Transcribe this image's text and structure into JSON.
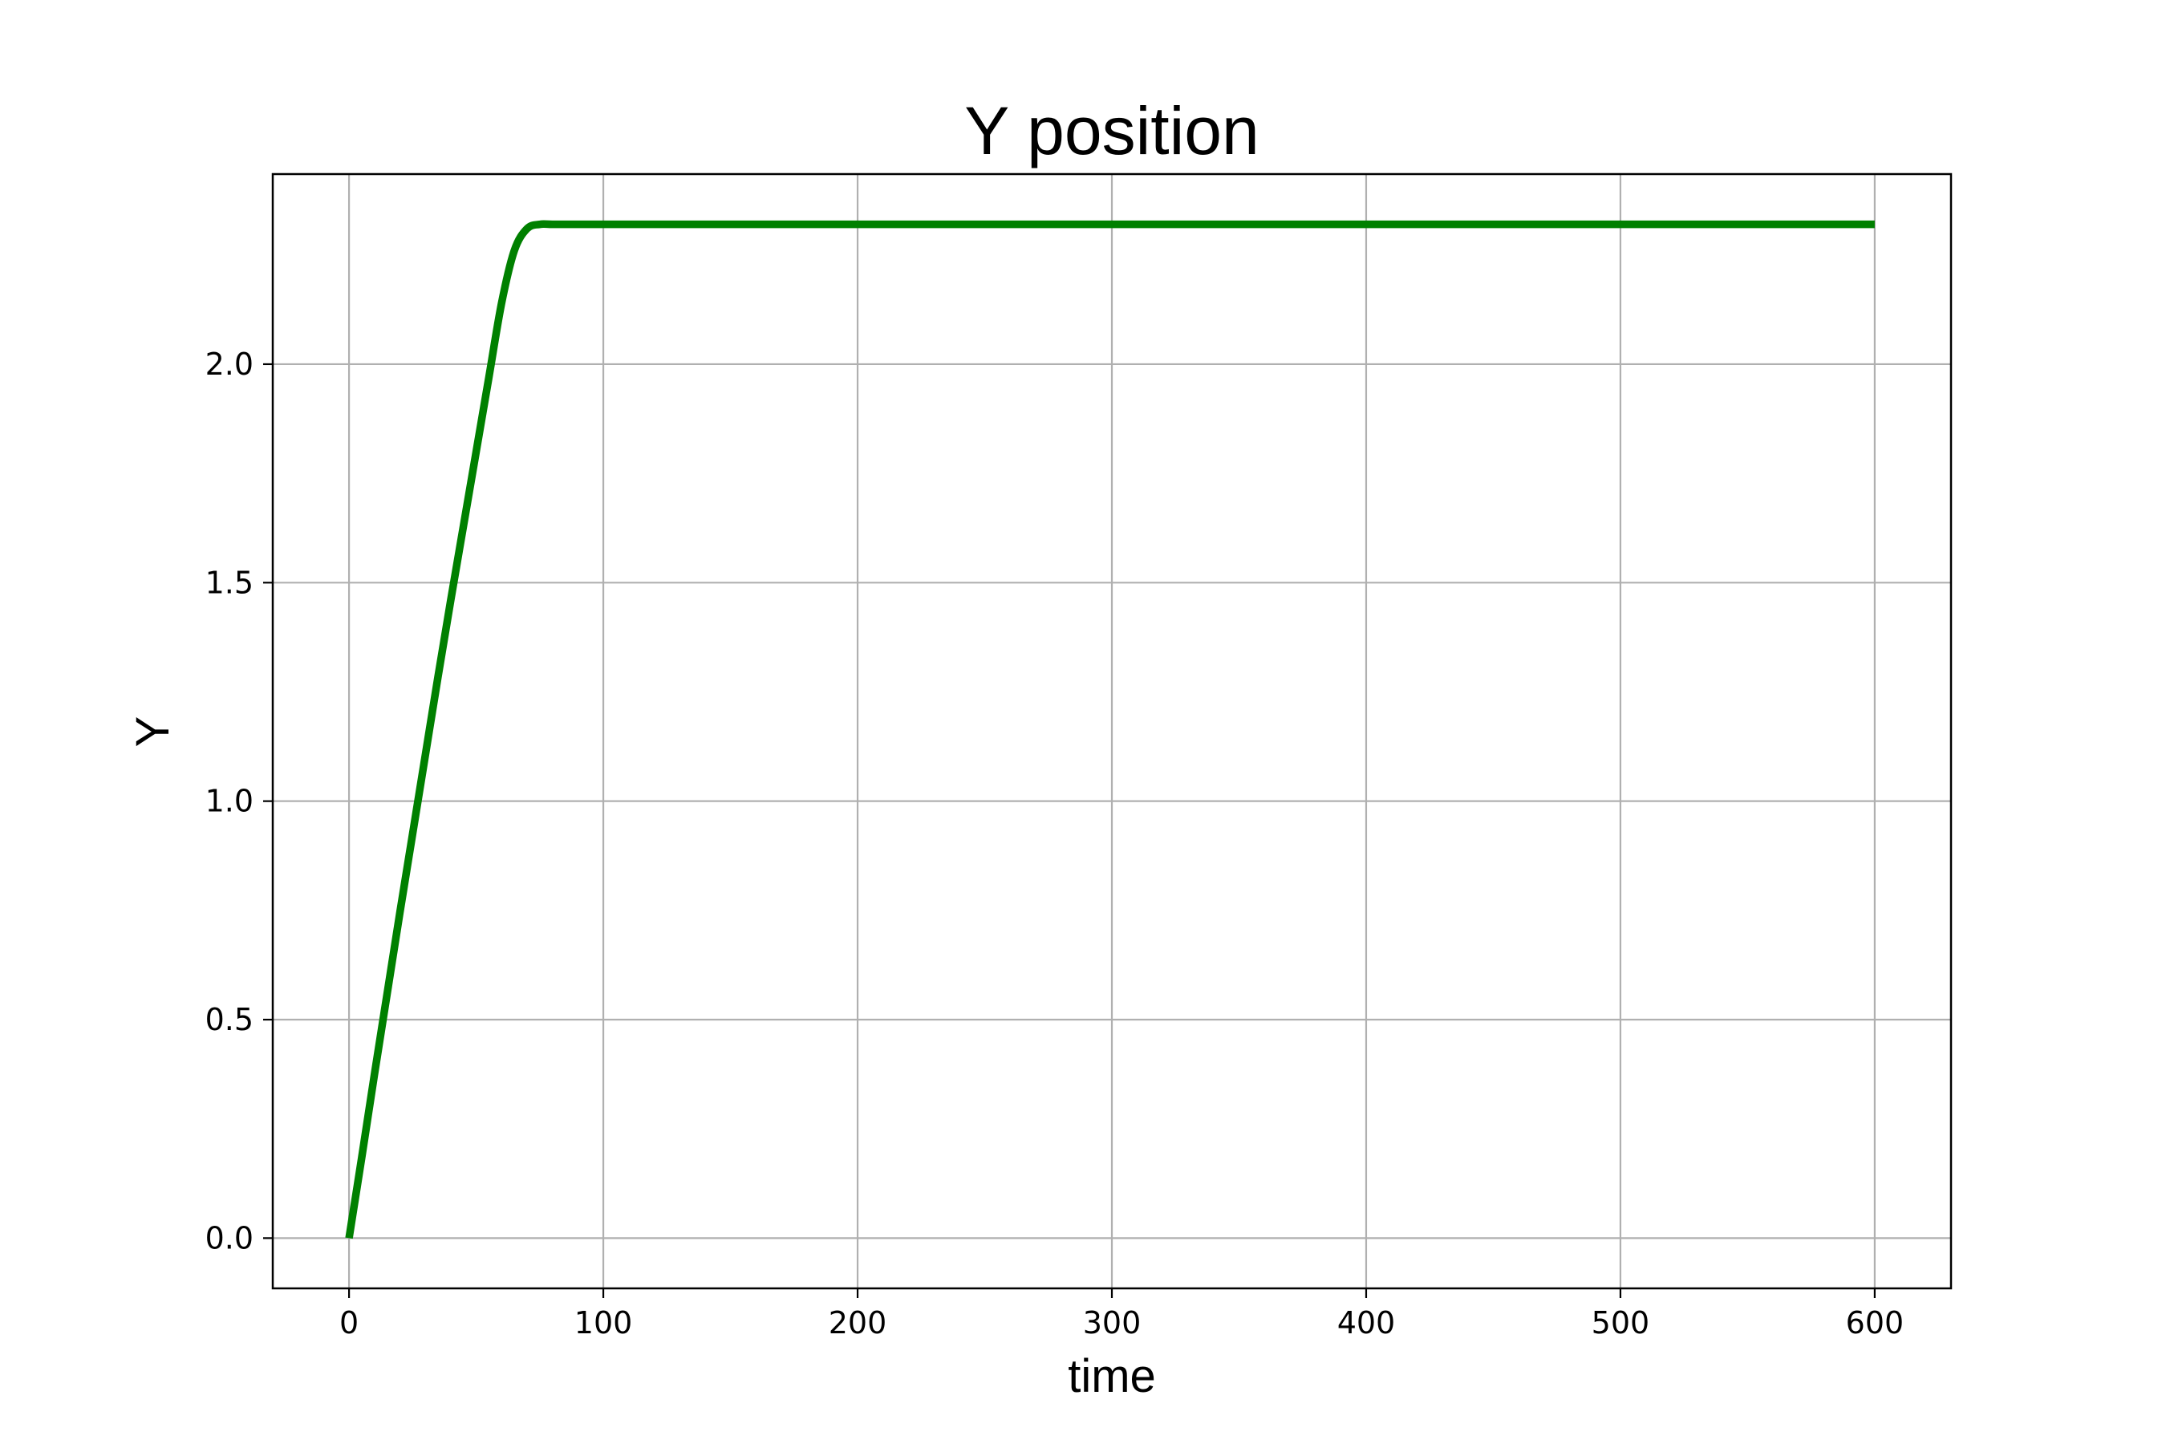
{
  "chart_data": {
    "type": "line",
    "title": "Y position",
    "xlabel": "time",
    "ylabel": "Y",
    "xlim": [
      -30,
      630
    ],
    "ylim": [
      -0.115,
      2.435
    ],
    "xticks": [
      0,
      100,
      200,
      300,
      400,
      500,
      600
    ],
    "xtick_labels": [
      "0",
      "100",
      "200",
      "300",
      "400",
      "500",
      "600"
    ],
    "yticks": [
      0.0,
      0.5,
      1.0,
      1.5,
      2.0
    ],
    "ytick_labels": [
      "0.0",
      "0.5",
      "1.0",
      "1.5",
      "2.0"
    ],
    "grid": true,
    "series": [
      {
        "color": "#008000",
        "x": [
          0,
          5,
          10,
          15,
          20,
          25,
          30,
          35,
          40,
          45,
          50,
          55,
          60,
          65,
          70,
          75,
          80,
          90,
          100,
          150,
          200,
          300,
          400,
          500,
          600
        ],
        "y": [
          0.0,
          0.185,
          0.375,
          0.56,
          0.745,
          0.925,
          1.105,
          1.285,
          1.46,
          1.63,
          1.8,
          1.97,
          2.14,
          2.26,
          2.31,
          2.32,
          2.32,
          2.32,
          2.32,
          2.32,
          2.32,
          2.32,
          2.32,
          2.32,
          2.32
        ]
      }
    ]
  }
}
